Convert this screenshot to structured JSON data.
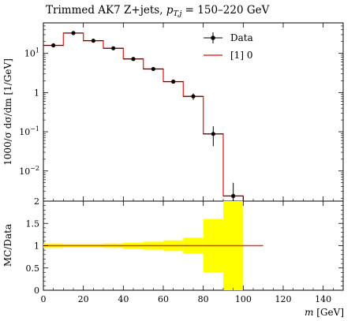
{
  "chart_data": {
    "type": "line",
    "title": "Trimmed AK7 Z+jets, p_{T,j} = 150–220 GeV",
    "title_parts": {
      "main": "Trimmed AK7 Z+jets, ",
      "var": "p",
      "sub": "T,j",
      "rest": " = 150–220 GeV"
    },
    "xlabel": "m [GeV]",
    "xlabel_parts": {
      "var": "m",
      "unit": " [GeV]"
    },
    "ylabel_main": "1000/σ dσ/dm [1/GeV]",
    "ylabel_ratio": "MC/Data",
    "xlim": [
      0,
      150
    ],
    "ylim_main": [
      0.0017,
      60
    ],
    "y_scale_main": "log",
    "ylim_ratio": [
      0,
      2
    ],
    "x_ticks": [
      "0",
      "20",
      "40",
      "60",
      "80",
      "100",
      "120",
      "140"
    ],
    "y_ticks_main": [
      "10^1",
      "1",
      "10^-1",
      "10^-2"
    ],
    "y_ticks_ratio": [
      "0",
      "0.5",
      "1",
      "1.5",
      "2"
    ],
    "legend_position": "top-right",
    "series": [
      {
        "name": "Data",
        "style": "points-with-errorbars",
        "color": "#000000",
        "x": [
          5,
          15,
          25,
          35,
          45,
          55,
          65,
          75,
          85,
          95
        ],
        "y": [
          16,
          33,
          21,
          13.5,
          7.2,
          4.0,
          1.9,
          0.8,
          0.088,
          0.0023
        ],
        "y_err_low": [
          0.8,
          1.2,
          0.9,
          0.6,
          0.4,
          0.25,
          0.15,
          0.15,
          0.045,
          0.0009
        ],
        "y_err_high": [
          0.8,
          1.2,
          0.9,
          0.6,
          0.4,
          0.25,
          0.15,
          0.15,
          0.05,
          0.0027
        ]
      },
      {
        "name": "[1] 0",
        "style": "step",
        "color": "#e8322a",
        "bin_edges": [
          0,
          10,
          20,
          30,
          40,
          50,
          60,
          70,
          80,
          90,
          100
        ],
        "y": [
          16,
          33,
          21,
          13.5,
          7.2,
          4.0,
          1.9,
          0.8,
          0.088,
          0.0023
        ]
      }
    ],
    "ratio": {
      "line_value": 1,
      "line_x_range": [
        0,
        110
      ],
      "line_color": "#e8322a",
      "band_color": "#ffff00",
      "band_bin_edges": [
        0,
        10,
        20,
        30,
        40,
        50,
        60,
        70,
        80,
        90,
        100
      ],
      "band_low": [
        0.95,
        0.96,
        0.96,
        0.95,
        0.93,
        0.91,
        0.88,
        0.82,
        0.4,
        0
      ],
      "band_high": [
        1.05,
        1.04,
        1.04,
        1.05,
        1.07,
        1.09,
        1.12,
        1.18,
        1.6,
        2
      ]
    }
  }
}
